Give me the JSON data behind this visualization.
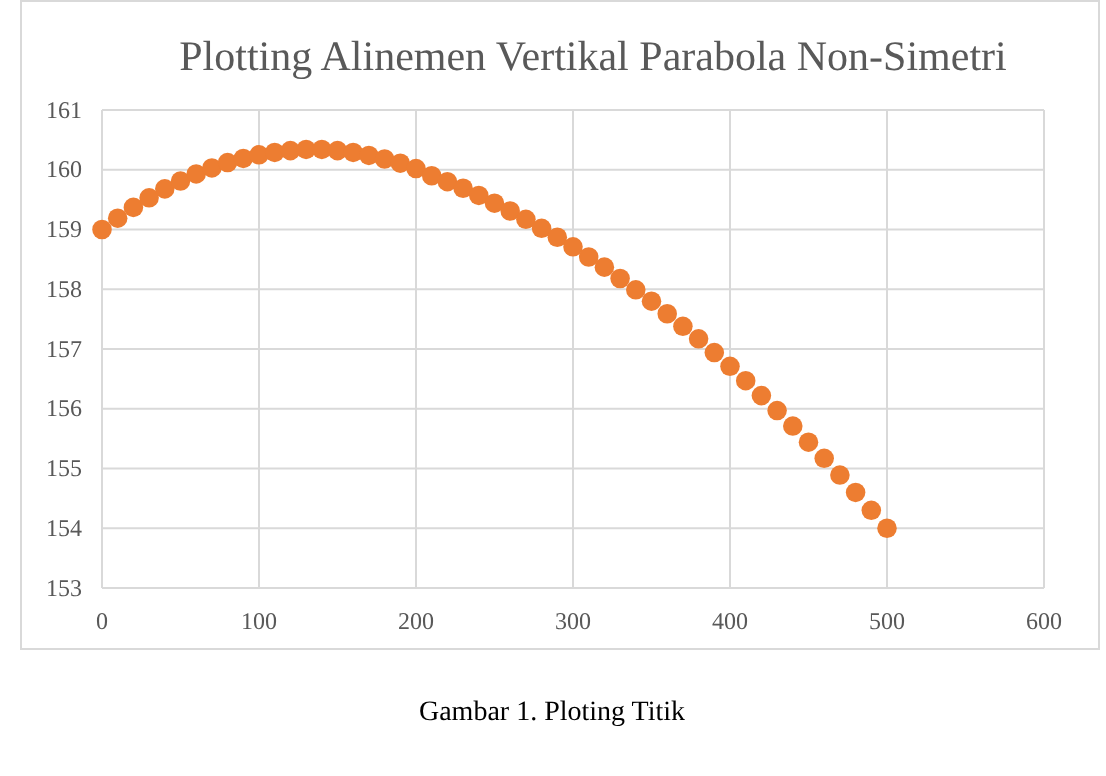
{
  "chart_data": {
    "type": "scatter",
    "title": "Plotting Alinemen Vertikal Parabola Non-Simetri",
    "annotations": [
      "Gambar 1. Ploting Titik"
    ],
    "x": [
      0,
      10,
      20,
      30,
      40,
      50,
      60,
      70,
      80,
      90,
      100,
      110,
      120,
      130,
      140,
      150,
      160,
      170,
      180,
      190,
      200,
      210,
      220,
      230,
      240,
      250,
      260,
      270,
      280,
      290,
      300,
      310,
      320,
      330,
      340,
      350,
      360,
      370,
      380,
      390,
      400,
      410,
      420,
      430,
      440,
      450,
      460,
      470,
      480,
      490,
      500
    ],
    "series": [
      {
        "color": "#ed7d31",
        "values": [
          159.0,
          159.19,
          159.37,
          159.53,
          159.68,
          159.81,
          159.93,
          160.03,
          160.12,
          160.19,
          160.25,
          160.29,
          160.32,
          160.34,
          160.34,
          160.32,
          160.29,
          160.24,
          160.18,
          160.11,
          160.02,
          159.9,
          159.8,
          159.69,
          159.57,
          159.44,
          159.31,
          159.17,
          159.02,
          158.87,
          158.71,
          158.54,
          158.37,
          158.18,
          157.99,
          157.8,
          157.59,
          157.38,
          157.17,
          156.94,
          156.71,
          156.47,
          156.22,
          155.97,
          155.71,
          155.44,
          155.17,
          154.89,
          154.6,
          154.3,
          154.0
        ]
      }
    ],
    "xlim": [
      0,
      600
    ],
    "xticks": [
      0,
      100,
      200,
      300,
      400,
      500,
      600
    ],
    "ylim": [
      153,
      161
    ],
    "yticks": [
      153,
      154,
      155,
      156,
      157,
      158,
      159,
      160,
      161
    ],
    "grid": true,
    "marker": "circle"
  }
}
